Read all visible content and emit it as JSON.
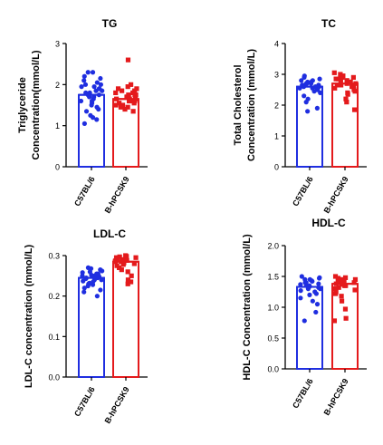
{
  "colors": {
    "c57": "#1f2ee0",
    "hpcsk9": "#e41a1c",
    "axis": "#000000"
  },
  "chart_data": [
    {
      "type": "bar",
      "title": "TG",
      "ylabel_lines": [
        "Triglyceride",
        "Concentration(mmol/L)"
      ],
      "categories": [
        "C57BL/6",
        "B-hPCSK9"
      ],
      "ylim": [
        0,
        3
      ],
      "yticks": [
        "0",
        "1",
        "2",
        "3"
      ],
      "ytick_values": [
        0,
        1,
        2,
        3
      ],
      "series": [
        {
          "key": "c57",
          "marker": "circle",
          "mean": 1.75,
          "points": [
            1.05,
            1.15,
            1.2,
            1.25,
            1.35,
            1.4,
            1.45,
            1.5,
            1.55,
            1.6,
            1.6,
            1.65,
            1.7,
            1.7,
            1.75,
            1.75,
            1.8,
            1.8,
            1.85,
            1.85,
            1.9,
            1.9,
            1.95,
            1.95,
            2.0,
            2.0,
            2.05,
            2.1,
            2.15,
            2.2,
            2.3,
            2.3
          ]
        },
        {
          "key": "hpcsk9",
          "marker": "square",
          "mean": 1.65,
          "points": [
            1.35,
            1.4,
            1.45,
            1.45,
            1.5,
            1.5,
            1.55,
            1.55,
            1.6,
            1.6,
            1.6,
            1.65,
            1.65,
            1.65,
            1.7,
            1.7,
            1.7,
            1.75,
            1.75,
            1.75,
            1.8,
            1.8,
            1.85,
            1.85,
            1.9,
            1.9,
            1.95,
            2.0,
            2.6
          ]
        }
      ]
    },
    {
      "type": "bar",
      "title": "TC",
      "ylabel_lines": [
        "Total Cholesterol",
        "Concentration (mmol/L)"
      ],
      "categories": [
        "C57BL/6",
        "B-hPCSK9"
      ],
      "ylim": [
        0,
        4
      ],
      "yticks": [
        "0",
        "1",
        "2",
        "3",
        "4"
      ],
      "ytick_values": [
        0,
        1,
        2,
        3,
        4
      ],
      "series": [
        {
          "key": "c57",
          "marker": "circle",
          "mean": 2.6,
          "points": [
            1.8,
            1.9,
            2.1,
            2.2,
            2.3,
            2.4,
            2.45,
            2.5,
            2.5,
            2.55,
            2.55,
            2.6,
            2.6,
            2.6,
            2.65,
            2.65,
            2.65,
            2.7,
            2.7,
            2.7,
            2.75,
            2.75,
            2.8,
            2.8,
            2.85,
            2.9,
            2.95
          ]
        },
        {
          "key": "hpcsk9",
          "marker": "square",
          "mean": 2.7,
          "points": [
            1.85,
            2.1,
            2.2,
            2.35,
            2.4,
            2.45,
            2.5,
            2.55,
            2.6,
            2.6,
            2.65,
            2.65,
            2.7,
            2.7,
            2.75,
            2.75,
            2.75,
            2.8,
            2.8,
            2.85,
            2.85,
            2.9,
            2.9,
            2.95,
            3.0,
            3.05
          ]
        }
      ]
    },
    {
      "type": "bar",
      "title": "LDL-C",
      "ylabel_lines": [
        "LDL-C concentration (mmol/L)"
      ],
      "categories": [
        "C57BL/6",
        "B-hPCSK9"
      ],
      "ylim": [
        0,
        0.3
      ],
      "yticks": [
        "0.0",
        "0.1",
        "0.2",
        "0.3"
      ],
      "ytick_values": [
        0,
        0.1,
        0.2,
        0.3
      ],
      "series": [
        {
          "key": "c57",
          "marker": "circle",
          "mean": 0.245,
          "points": [
            0.2,
            0.21,
            0.215,
            0.22,
            0.225,
            0.228,
            0.23,
            0.232,
            0.235,
            0.237,
            0.24,
            0.24,
            0.243,
            0.245,
            0.245,
            0.248,
            0.25,
            0.25,
            0.252,
            0.255,
            0.255,
            0.258,
            0.26,
            0.262,
            0.265,
            0.268,
            0.27
          ]
        },
        {
          "key": "hpcsk9",
          "marker": "square",
          "mean": 0.285,
          "points": [
            0.23,
            0.235,
            0.24,
            0.25,
            0.26,
            0.265,
            0.27,
            0.275,
            0.278,
            0.28,
            0.282,
            0.285,
            0.285,
            0.287,
            0.288,
            0.29,
            0.29,
            0.29,
            0.292,
            0.293,
            0.295,
            0.295,
            0.297,
            0.298,
            0.3
          ]
        }
      ]
    },
    {
      "type": "bar",
      "title": "HDL-C",
      "ylabel_lines": [
        "HDL-C Concentration (mmol/L)"
      ],
      "categories": [
        "C57BL/6",
        "B-hPCSK9"
      ],
      "ylim": [
        0,
        2.0
      ],
      "yticks": [
        "0.0",
        "0.5",
        "1.0",
        "1.5",
        "2.0"
      ],
      "ytick_values": [
        0,
        0.5,
        1.0,
        1.5,
        2.0
      ],
      "series": [
        {
          "key": "c57",
          "marker": "circle",
          "mean": 1.33,
          "points": [
            0.78,
            0.92,
            1.05,
            1.1,
            1.15,
            1.2,
            1.22,
            1.25,
            1.27,
            1.3,
            1.3,
            1.32,
            1.33,
            1.35,
            1.35,
            1.37,
            1.38,
            1.4,
            1.4,
            1.42,
            1.43,
            1.45,
            1.45,
            1.47,
            1.48,
            1.5
          ]
        },
        {
          "key": "hpcsk9",
          "marker": "square",
          "mean": 1.38,
          "points": [
            0.78,
            0.82,
            0.97,
            1.1,
            1.18,
            1.22,
            1.25,
            1.28,
            1.3,
            1.32,
            1.35,
            1.35,
            1.37,
            1.38,
            1.4,
            1.4,
            1.42,
            1.42,
            1.44,
            1.45,
            1.45,
            1.47,
            1.48,
            1.5
          ]
        }
      ]
    }
  ]
}
